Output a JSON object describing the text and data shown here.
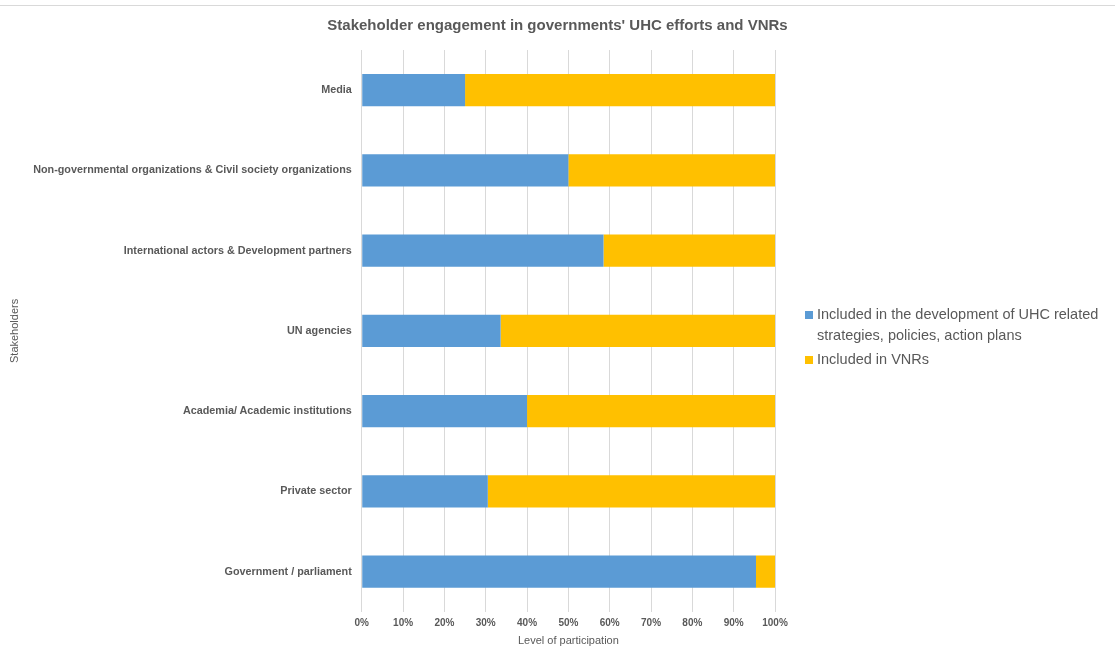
{
  "chart_data": {
    "type": "bar",
    "title": "Stakeholder engagement in governments' UHC efforts and VNRs",
    "orientation": "horizontal",
    "stacked": true,
    "categories": [
      "Media",
      "Non-governmental organizations & Civil society organizations",
      "International actors & Development partners",
      "UN agencies",
      "Academia/ Academic institutions",
      "Private sector",
      "Government / parliament"
    ],
    "series": [
      {
        "name": "Included in the development of UHC related strategies, policies, action plans",
        "color": "#5b9bd5",
        "values": [
          25,
          50,
          58.5,
          33.6,
          40,
          30.5,
          95.4
        ]
      },
      {
        "name": "Included in VNRs",
        "color": "#ffc000",
        "values": [
          75,
          50,
          41.5,
          66.4,
          60,
          69.5,
          4.6
        ]
      }
    ],
    "xlabel": "Level of participation",
    "ylabel": "Stakeholders",
    "xlim": [
      0,
      100
    ],
    "xticks": [
      {
        "value": 0,
        "label": "0%"
      },
      {
        "value": 10,
        "label": "10%"
      },
      {
        "value": 20,
        "label": "20%"
      },
      {
        "value": 30,
        "label": "30%"
      },
      {
        "value": 40,
        "label": "40%"
      },
      {
        "value": 50,
        "label": "50%"
      },
      {
        "value": 60,
        "label": "60%"
      },
      {
        "value": 70,
        "label": "70%"
      },
      {
        "value": 80,
        "label": "80%"
      },
      {
        "value": 90,
        "label": "90%"
      },
      {
        "value": 100,
        "label": "100%"
      }
    ],
    "grid": "x",
    "legend": "right"
  }
}
